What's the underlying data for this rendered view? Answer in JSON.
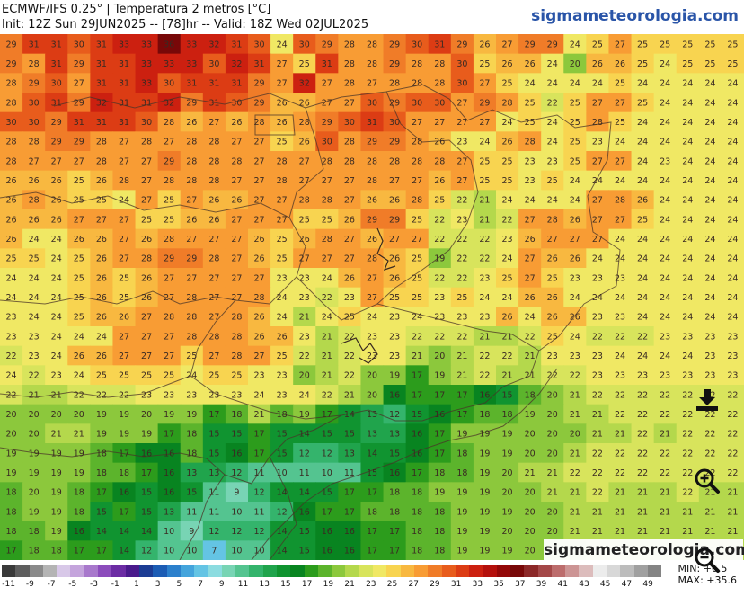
{
  "header": {
    "title_line1": "ECMWF/IFS 0.25° | Temperatura 2 metros [°C]",
    "title_line2": "Init: 12Z Sun 29JUN2025 -- [78]hr -- Valid: 18Z Wed 02JUL2025",
    "brand": "sigmameteorologia.com"
  },
  "map": {
    "grid_rows": [
      [
        29,
        31,
        31,
        30,
        31,
        33,
        33,
        36,
        33,
        32,
        31,
        30,
        24,
        30,
        29,
        28,
        28,
        29,
        30,
        31,
        29,
        26,
        27,
        29,
        29,
        24,
        25,
        27,
        25,
        25,
        25,
        25,
        25
      ],
      [
        29,
        28,
        31,
        29,
        31,
        31,
        33,
        33,
        33,
        30,
        32,
        31,
        27,
        25,
        31,
        28,
        28,
        29,
        28,
        28,
        30,
        25,
        26,
        26,
        24,
        20,
        26,
        26,
        25,
        24,
        25,
        25,
        25
      ],
      [
        28,
        29,
        30,
        27,
        31,
        31,
        33,
        30,
        31,
        31,
        31,
        29,
        27,
        32,
        27,
        28,
        27,
        28,
        28,
        28,
        30,
        27,
        25,
        24,
        24,
        24,
        24,
        25,
        24,
        24,
        24,
        24,
        24
      ],
      [
        28,
        30,
        31,
        29,
        32,
        31,
        31,
        32,
        29,
        31,
        30,
        29,
        26,
        26,
        27,
        27,
        30,
        29,
        30,
        30,
        27,
        29,
        28,
        25,
        22,
        25,
        27,
        27,
        25,
        24,
        24,
        24,
        24
      ],
      [
        30,
        30,
        29,
        31,
        31,
        31,
        30,
        28,
        26,
        27,
        26,
        28,
        26,
        28,
        29,
        30,
        31,
        30,
        27,
        27,
        27,
        27,
        24,
        25,
        24,
        25,
        28,
        25,
        24,
        24,
        24,
        24,
        24
      ],
      [
        28,
        28,
        29,
        29,
        28,
        27,
        28,
        27,
        28,
        28,
        27,
        27,
        25,
        26,
        30,
        28,
        29,
        29,
        28,
        26,
        23,
        24,
        26,
        28,
        24,
        25,
        23,
        24,
        24,
        24,
        24,
        24,
        24
      ],
      [
        28,
        27,
        27,
        27,
        28,
        27,
        27,
        29,
        28,
        28,
        28,
        27,
        28,
        27,
        28,
        28,
        28,
        28,
        28,
        28,
        27,
        25,
        25,
        23,
        23,
        25,
        27,
        27,
        24,
        23,
        24,
        24,
        24
      ],
      [
        26,
        26,
        26,
        25,
        26,
        28,
        27,
        28,
        28,
        28,
        27,
        27,
        28,
        27,
        27,
        27,
        28,
        27,
        27,
        26,
        27,
        25,
        25,
        23,
        25,
        24,
        24,
        24,
        24,
        24,
        24,
        24,
        24
      ],
      [
        26,
        28,
        26,
        25,
        25,
        24,
        27,
        25,
        27,
        26,
        26,
        27,
        27,
        28,
        28,
        27,
        26,
        26,
        28,
        25,
        22,
        21,
        24,
        24,
        24,
        24,
        27,
        28,
        26,
        24,
        24,
        24,
        24
      ],
      [
        26,
        26,
        26,
        27,
        27,
        27,
        25,
        25,
        26,
        26,
        27,
        27,
        27,
        25,
        25,
        26,
        29,
        29,
        25,
        22,
        23,
        21,
        22,
        27,
        28,
        26,
        27,
        27,
        25,
        24,
        24,
        24,
        24
      ],
      [
        26,
        24,
        24,
        26,
        26,
        27,
        26,
        28,
        27,
        27,
        27,
        26,
        25,
        26,
        28,
        27,
        26,
        27,
        27,
        22,
        22,
        22,
        23,
        26,
        27,
        27,
        27,
        24,
        24,
        24,
        24,
        24,
        24
      ],
      [
        25,
        25,
        24,
        25,
        26,
        27,
        28,
        29,
        29,
        28,
        27,
        26,
        25,
        27,
        27,
        27,
        28,
        26,
        25,
        19,
        22,
        22,
        24,
        27,
        26,
        26,
        24,
        24,
        24,
        24,
        24,
        24,
        24
      ],
      [
        24,
        24,
        24,
        25,
        26,
        25,
        26,
        27,
        27,
        27,
        27,
        27,
        23,
        23,
        24,
        26,
        27,
        26,
        25,
        22,
        22,
        23,
        25,
        27,
        25,
        23,
        23,
        23,
        24,
        24,
        24,
        24,
        24
      ],
      [
        24,
        24,
        24,
        25,
        26,
        25,
        26,
        27,
        28,
        27,
        27,
        28,
        24,
        23,
        22,
        23,
        27,
        25,
        25,
        23,
        25,
        24,
        24,
        26,
        26,
        24,
        24,
        24,
        24,
        24,
        24,
        24,
        24
      ],
      [
        23,
        24,
        24,
        25,
        26,
        26,
        27,
        28,
        28,
        27,
        28,
        26,
        24,
        21,
        24,
        25,
        24,
        23,
        24,
        23,
        23,
        23,
        26,
        24,
        26,
        26,
        23,
        23,
        24,
        24,
        24,
        24,
        24
      ],
      [
        23,
        23,
        24,
        24,
        24,
        27,
        27,
        27,
        28,
        28,
        28,
        26,
        26,
        23,
        21,
        22,
        23,
        23,
        22,
        22,
        22,
        21,
        21,
        22,
        25,
        24,
        22,
        22,
        22,
        23,
        23,
        23,
        23
      ],
      [
        22,
        23,
        24,
        26,
        26,
        27,
        27,
        27,
        25,
        27,
        28,
        27,
        25,
        22,
        21,
        22,
        23,
        23,
        21,
        20,
        21,
        22,
        22,
        21,
        23,
        23,
        23,
        24,
        24,
        24,
        24,
        23,
        23
      ],
      [
        24,
        22,
        23,
        24,
        25,
        25,
        25,
        25,
        24,
        25,
        25,
        23,
        23,
        20,
        21,
        22,
        20,
        19,
        17,
        19,
        21,
        22,
        21,
        21,
        22,
        22,
        23,
        23,
        23,
        23,
        23,
        23,
        23
      ],
      [
        22,
        21,
        21,
        22,
        22,
        22,
        23,
        23,
        23,
        23,
        23,
        24,
        23,
        24,
        22,
        21,
        20,
        16,
        17,
        17,
        17,
        16,
        15,
        18,
        20,
        21,
        22,
        22,
        22,
        22,
        22,
        22,
        22
      ],
      [
        20,
        20,
        20,
        20,
        19,
        19,
        20,
        19,
        19,
        17,
        18,
        21,
        18,
        19,
        17,
        14,
        13,
        12,
        15,
        16,
        17,
        18,
        18,
        19,
        20,
        21,
        21,
        22,
        22,
        22,
        22,
        22,
        22
      ],
      [
        20,
        20,
        21,
        21,
        19,
        19,
        19,
        17,
        18,
        15,
        15,
        17,
        15,
        14,
        15,
        15,
        13,
        13,
        16,
        17,
        19,
        19,
        19,
        20,
        20,
        20,
        21,
        21,
        22,
        21,
        22,
        22,
        22
      ],
      [
        19,
        19,
        19,
        19,
        18,
        17,
        16,
        16,
        18,
        15,
        16,
        17,
        15,
        12,
        12,
        13,
        14,
        15,
        16,
        17,
        18,
        19,
        19,
        20,
        20,
        21,
        22,
        22,
        22,
        22,
        22,
        22,
        22
      ],
      [
        19,
        19,
        19,
        19,
        18,
        18,
        17,
        16,
        13,
        13,
        12,
        11,
        10,
        11,
        10,
        11,
        15,
        16,
        17,
        18,
        18,
        19,
        20,
        21,
        21,
        22,
        22,
        22,
        22,
        22,
        22,
        22,
        22
      ],
      [
        18,
        20,
        19,
        18,
        17,
        16,
        15,
        16,
        15,
        11,
        9,
        12,
        14,
        14,
        15,
        17,
        17,
        18,
        18,
        19,
        19,
        19,
        20,
        20,
        21,
        21,
        22,
        21,
        21,
        21,
        22,
        21,
        21
      ],
      [
        18,
        19,
        19,
        18,
        15,
        17,
        15,
        13,
        11,
        11,
        10,
        11,
        12,
        16,
        17,
        17,
        18,
        18,
        18,
        18,
        19,
        19,
        19,
        20,
        20,
        21,
        21,
        21,
        21,
        21,
        21,
        21,
        21
      ],
      [
        18,
        18,
        19,
        16,
        14,
        14,
        14,
        10,
        9,
        12,
        12,
        12,
        14,
        15,
        16,
        16,
        17,
        17,
        18,
        18,
        19,
        19,
        20,
        20,
        20,
        21,
        21,
        21,
        21,
        21,
        21,
        21,
        21
      ],
      [
        17,
        18,
        18,
        17,
        17,
        14,
        12,
        10,
        10,
        7,
        10,
        10,
        14,
        15,
        16,
        16,
        17,
        17,
        18,
        18,
        19,
        19,
        19,
        20,
        20,
        20,
        21,
        21,
        21,
        21,
        21,
        21,
        21
      ]
    ]
  },
  "legend": {
    "colors": [
      "#3a3a3a",
      "#5e5e5e",
      "#8a8a8a",
      "#b4b4b4",
      "#d8c8e8",
      "#c4a4dc",
      "#a878cc",
      "#8c4cbc",
      "#6c2ca4",
      "#4a1a8c",
      "#1c3c94",
      "#1c5cb4",
      "#2c80cc",
      "#44a4dc",
      "#64c4e4",
      "#8cdce0",
      "#78d4b4",
      "#54c490",
      "#34b46c",
      "#20a44c",
      "#109430",
      "#088420",
      "#2c9c1c",
      "#5cb42c",
      "#8cc83c",
      "#b4d84c",
      "#d8e45c",
      "#f0e864",
      "#f8d450",
      "#f8b840",
      "#f89c34",
      "#f07c28",
      "#e85c1c",
      "#dc3c14",
      "#cc2010",
      "#b4100c",
      "#940808",
      "#780808",
      "#8c2828",
      "#a44848",
      "#bc6c6c",
      "#cc9494",
      "#dcbcbc",
      "#ececec",
      "#d8d8d8",
      "#bcbcbc",
      "#a0a0a0",
      "#848484"
    ],
    "tick_labels": [
      "-11",
      "-9",
      "-7",
      "-5",
      "-3",
      "-1",
      "1",
      "3",
      "5",
      "7",
      "9",
      "11",
      "13",
      "15",
      "17",
      "19",
      "21",
      "23",
      "25",
      "27",
      "29",
      "31",
      "33",
      "35",
      "37",
      "39",
      "41",
      "43",
      "45",
      "47",
      "49"
    ],
    "min_label": "MIN: +6.5",
    "max_label": "MAX: +35.6"
  },
  "watermark": {
    "brand": "sigmameteorologia.com"
  },
  "icons": {
    "download": "download-icon",
    "zoom_in": "zoom-in-icon",
    "zoom_out": "zoom-out-icon"
  }
}
